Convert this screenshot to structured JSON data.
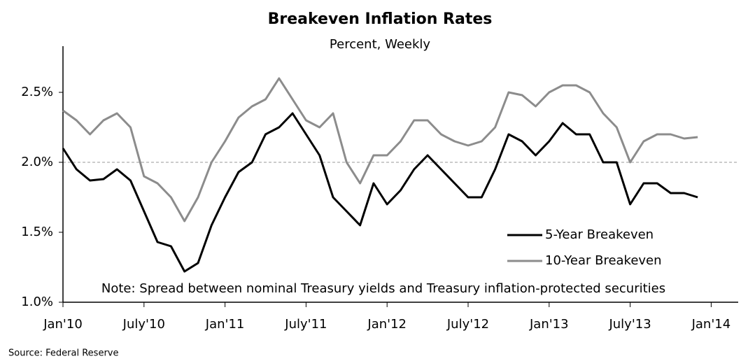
{
  "chart_data": {
    "type": "line",
    "title": "Breakeven Inflation Rates",
    "subtitle": "Percent, Weekly",
    "annotation": "Note: Spread between nominal Treasury yields and Treasury inflation-protected securities",
    "source": "Source: Federal Reserve",
    "x": [
      "2010-01",
      "2010-02",
      "2010-03",
      "2010-04",
      "2010-05",
      "2010-06",
      "2010-07",
      "2010-08",
      "2010-09",
      "2010-10",
      "2010-11",
      "2010-12",
      "2011-01",
      "2011-02",
      "2011-03",
      "2011-04",
      "2011-05",
      "2011-06",
      "2011-07",
      "2011-08",
      "2011-09",
      "2011-10",
      "2011-11",
      "2011-12",
      "2012-01",
      "2012-02",
      "2012-03",
      "2012-04",
      "2012-05",
      "2012-06",
      "2012-07",
      "2012-08",
      "2012-09",
      "2012-10",
      "2012-11",
      "2012-12",
      "2013-01",
      "2013-02",
      "2013-03",
      "2013-04",
      "2013-05",
      "2013-06",
      "2013-07",
      "2013-08",
      "2013-09",
      "2013-10",
      "2013-11",
      "2013-12"
    ],
    "series": [
      {
        "name": "5-Year Breakeven",
        "color": "#000000",
        "width": 3,
        "values": [
          2.1,
          1.95,
          1.87,
          1.88,
          1.95,
          1.87,
          1.65,
          1.43,
          1.4,
          1.22,
          1.28,
          1.55,
          1.75,
          1.93,
          2.0,
          2.2,
          2.25,
          2.35,
          2.2,
          2.05,
          1.75,
          1.65,
          1.55,
          1.85,
          1.7,
          1.8,
          1.95,
          2.05,
          1.95,
          1.85,
          1.75,
          1.75,
          1.95,
          2.2,
          2.15,
          2.05,
          2.15,
          2.28,
          2.2,
          2.2,
          2.0,
          2.0,
          1.7,
          1.85,
          1.85,
          1.78,
          1.78,
          1.75
        ]
      },
      {
        "name": "10-Year Breakeven",
        "color": "#8c8c8c",
        "width": 3,
        "values": [
          2.37,
          2.3,
          2.2,
          2.3,
          2.35,
          2.25,
          1.9,
          1.85,
          1.75,
          1.58,
          1.75,
          2.0,
          2.15,
          2.32,
          2.4,
          2.45,
          2.6,
          2.45,
          2.3,
          2.25,
          2.35,
          2.0,
          1.85,
          2.05,
          2.05,
          2.15,
          2.3,
          2.3,
          2.2,
          2.15,
          2.12,
          2.15,
          2.25,
          2.5,
          2.48,
          2.4,
          2.5,
          2.55,
          2.55,
          2.5,
          2.35,
          2.25,
          2.0,
          2.15,
          2.2,
          2.2,
          2.17,
          2.18
        ]
      }
    ],
    "xlim": [
      "2010-01",
      "2014-03"
    ],
    "xticks": [
      {
        "value": "2010-01",
        "label": "Jan'10"
      },
      {
        "value": "2010-07",
        "label": "July'10"
      },
      {
        "value": "2011-01",
        "label": "Jan'11"
      },
      {
        "value": "2011-07",
        "label": "July'11"
      },
      {
        "value": "2012-01",
        "label": "Jan'12"
      },
      {
        "value": "2012-07",
        "label": "July'12"
      },
      {
        "value": "2013-01",
        "label": "Jan'13"
      },
      {
        "value": "2013-07",
        "label": "July'13"
      },
      {
        "value": "2014-01",
        "label": "Jan'14"
      }
    ],
    "ylim": [
      1.0,
      2.83
    ],
    "yticks": [
      {
        "value": 1.0,
        "label": "1.0%"
      },
      {
        "value": 1.5,
        "label": "1.5%"
      },
      {
        "value": 2.0,
        "label": "2.0%"
      },
      {
        "value": 2.5,
        "label": "2.5%"
      }
    ],
    "reference_line": 2.0,
    "grid": false
  }
}
